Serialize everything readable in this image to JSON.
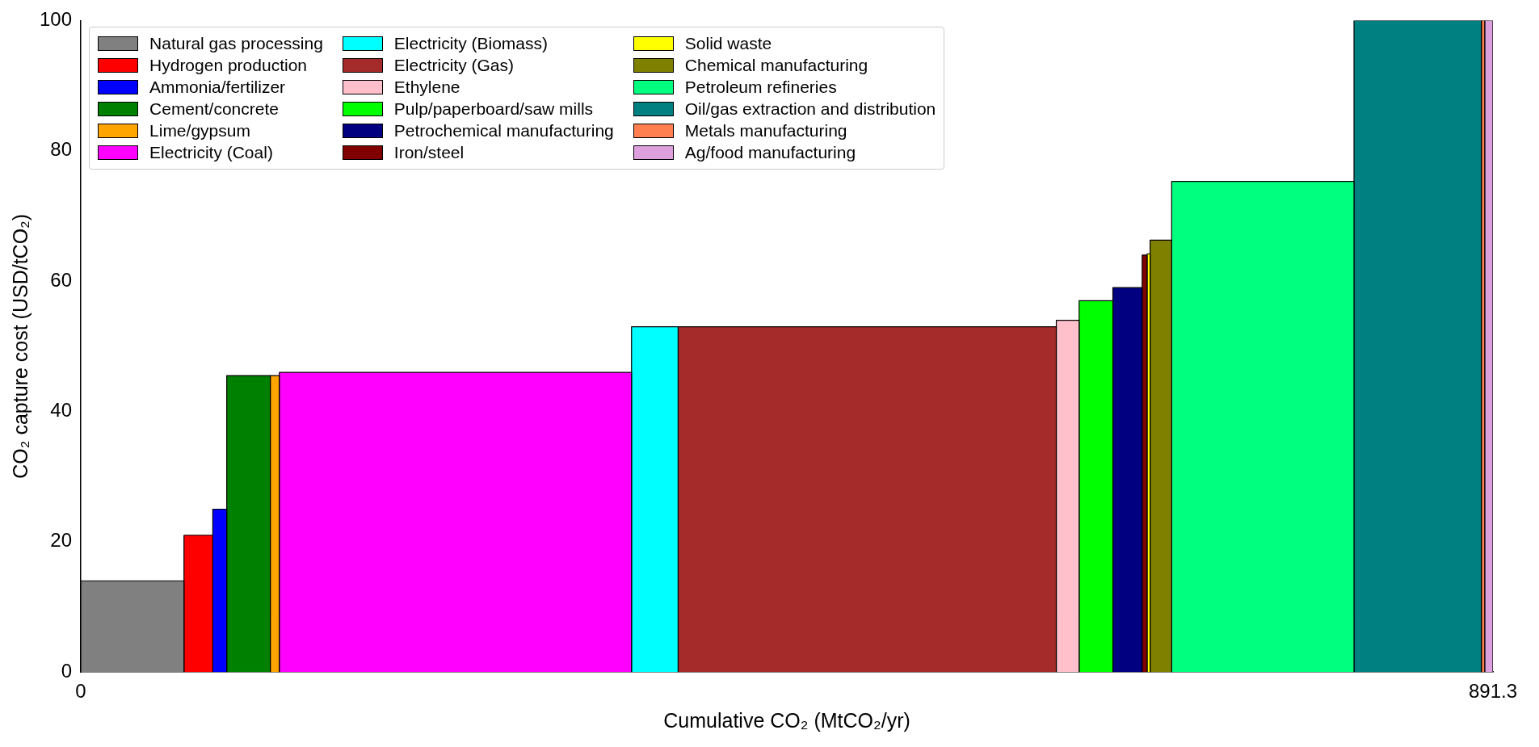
{
  "chart_data": {
    "type": "histogram",
    "xlabel": "Cumulative CO₂ (MtCO₂/yr)",
    "ylabel": "CO₂ capture cost (USD/tCO₂)",
    "xlim": [
      0,
      891.3
    ],
    "xticks": [
      0,
      891.3
    ],
    "ylim": [
      0,
      100
    ],
    "yticks": [
      0,
      20,
      40,
      60,
      80,
      100
    ],
    "grid": false,
    "legend": "top left",
    "bins": [
      0,
      65.1,
      83.3,
      92.1,
      119.6,
      125.3,
      347.6,
      377,
      615.7,
      630.1,
      651.4,
      669.9,
      673,
      674.9,
      688.5,
      803.6,
      884,
      886.1,
      891.3
    ],
    "series": [
      {
        "name": "Natural gas processing",
        "color": "#808080",
        "values": [
          14,
          null,
          null,
          null,
          null,
          null,
          null,
          null,
          null,
          null,
          null,
          null,
          null,
          null,
          null,
          null,
          null,
          null
        ]
      },
      {
        "name": "Hydrogen production",
        "color": "#ff0000",
        "values": [
          null,
          21,
          null,
          null,
          null,
          null,
          null,
          null,
          null,
          null,
          null,
          null,
          null,
          null,
          null,
          null,
          null,
          null
        ]
      },
      {
        "name": "Ammonia/fertilizer",
        "color": "#0000ff",
        "values": [
          null,
          null,
          25,
          null,
          null,
          null,
          null,
          null,
          null,
          null,
          null,
          null,
          null,
          null,
          null,
          null,
          null,
          null
        ]
      },
      {
        "name": "Cement/concrete",
        "color": "#008000",
        "values": [
          null,
          null,
          null,
          45.5,
          null,
          null,
          null,
          null,
          null,
          null,
          null,
          null,
          null,
          null,
          null,
          null,
          null,
          null
        ]
      },
      {
        "name": "Lime/gypsum",
        "color": "#ffa500",
        "values": [
          null,
          null,
          null,
          null,
          45.5,
          null,
          null,
          null,
          null,
          null,
          null,
          null,
          null,
          null,
          null,
          null,
          null,
          null
        ]
      },
      {
        "name": "Electricity (Coal)",
        "color": "#ff00ff",
        "values": [
          null,
          null,
          null,
          null,
          null,
          46,
          null,
          null,
          null,
          null,
          null,
          null,
          null,
          null,
          null,
          null,
          null,
          null
        ]
      },
      {
        "name": "Electricity (Biomass)",
        "color": "#00ffff",
        "values": [
          null,
          null,
          null,
          null,
          null,
          null,
          53,
          null,
          null,
          null,
          null,
          null,
          null,
          null,
          null,
          null,
          null,
          null
        ]
      },
      {
        "name": "Electricity (Gas)",
        "color": "#a52a2a",
        "values": [
          null,
          null,
          null,
          null,
          null,
          null,
          null,
          53,
          null,
          null,
          null,
          null,
          null,
          null,
          null,
          null,
          null,
          null
        ]
      },
      {
        "name": "Ethylene",
        "color": "#ffc0cb",
        "values": [
          null,
          null,
          null,
          null,
          null,
          null,
          null,
          null,
          54,
          null,
          null,
          null,
          null,
          null,
          null,
          null,
          null,
          null
        ]
      },
      {
        "name": "Pulp/paperboard/saw mills",
        "color": "#00ff00",
        "values": [
          null,
          null,
          null,
          null,
          null,
          null,
          null,
          null,
          null,
          57,
          null,
          null,
          null,
          null,
          null,
          null,
          null,
          null
        ]
      },
      {
        "name": "Petrochemical manufacturing",
        "color": "#000080",
        "values": [
          null,
          null,
          null,
          null,
          null,
          null,
          null,
          null,
          null,
          null,
          59,
          null,
          null,
          null,
          null,
          null,
          null,
          null
        ]
      },
      {
        "name": "Iron/steel",
        "color": "#800000",
        "values": [
          null,
          null,
          null,
          null,
          null,
          null,
          null,
          null,
          null,
          null,
          null,
          64,
          null,
          null,
          null,
          null,
          null,
          null
        ]
      },
      {
        "name": "Solid waste",
        "color": "#ffff00",
        "values": [
          null,
          null,
          null,
          null,
          null,
          null,
          null,
          null,
          null,
          null,
          null,
          null,
          64.2,
          null,
          null,
          null,
          null,
          null
        ]
      },
      {
        "name": "Chemical manufacturing",
        "color": "#808000",
        "values": [
          null,
          null,
          null,
          null,
          null,
          null,
          null,
          null,
          null,
          null,
          null,
          null,
          null,
          66.3,
          null,
          null,
          null,
          null
        ]
      },
      {
        "name": "Petroleum refineries",
        "color": "#00ff7f",
        "values": [
          null,
          null,
          null,
          null,
          null,
          null,
          null,
          null,
          null,
          null,
          null,
          null,
          null,
          null,
          75.3,
          null,
          null,
          null
        ]
      },
      {
        "name": "Oil/gas extraction and distribution",
        "color": "#008080",
        "values": [
          null,
          null,
          null,
          null,
          null,
          null,
          null,
          null,
          null,
          null,
          null,
          null,
          null,
          null,
          null,
          100,
          null,
          null
        ]
      },
      {
        "name": "Metals manufacturing",
        "color": "#ff7f50",
        "values": [
          null,
          null,
          null,
          null,
          null,
          null,
          null,
          null,
          null,
          null,
          null,
          null,
          null,
          null,
          null,
          null,
          100,
          null
        ]
      },
      {
        "name": "Ag/food manufacturing",
        "color": "#dda0dd",
        "values": [
          null,
          null,
          null,
          null,
          null,
          null,
          null,
          null,
          null,
          null,
          null,
          null,
          null,
          null,
          null,
          null,
          null,
          100
        ]
      }
    ]
  }
}
